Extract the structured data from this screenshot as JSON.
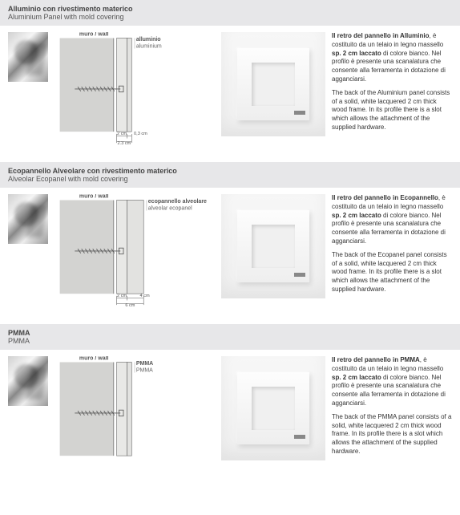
{
  "sections": [
    {
      "title_it": "Alluminio con rivestimento materico",
      "title_en": "Aluminium Panel with mold covering",
      "wall_label": "muro / wall",
      "mat_it": "alluminio",
      "mat_en": "aluminium",
      "dim1": "2 cm",
      "dim2": "0,3 cm",
      "dim_total": "2,3 cm",
      "desc_it": "Il retro del pannello in Alluminio, è costituito da un telaio in legno massello sp. 2 cm laccato di colore bianco.  Nel profilo è presente una scanalatura che consente alla ferramenta in dotazione di agganciarsi.",
      "desc_en": "The back of the Aluminium panel consists of a solid, white lacquered 2 cm thick wood frame.  In its profile there is a slot which allows the attachment of the supplied hardware.",
      "gap_r": 6
    },
    {
      "title_it": "Ecopannello Alveolare con rivestimento materico",
      "title_en": "Alveolar Ecopanel with mold covering",
      "wall_label": "muro / wall",
      "mat_it": "ecopannello alveolare",
      "mat_en": "alveolar ecopanel",
      "dim1": "2 cm",
      "dim2": "4 cm",
      "dim_total": "6 cm",
      "desc_it": "Il retro del pannello in Ecopannello, è costituito da un telaio in legno massello sp. 2 cm laccato di colore bianco.  Nel profilo è presente una scanalatura che consente alla ferramenta in dotazione di agganciarsi.",
      "desc_en": "The back of the Ecopanel panel consists of a solid, white lacquered 2 cm thick wood frame.  In its profile there is a slot which allows the attachment of the supplied hardware.",
      "gap_r": 22
    },
    {
      "title_it": "PMMA",
      "title_en": "PMMA",
      "wall_label": "muro / wall",
      "mat_it": "PMMA",
      "mat_en": "PMMA",
      "dim1": "",
      "dim2": "",
      "dim_total": "",
      "desc_it": "Il retro del pannello in PMMA, è costituito da un telaio in legno massello sp. 2 cm laccato di colore bianco.  Nel profilo è presente una scanalatura che consente alla ferramenta in dotazione di agganciarsi.",
      "desc_en": "The back of the PMMA panel consists of a solid, white lacquered  2 cm thick wood frame.  In its profile there is a slot which allows the attachment of the supplied hardware.",
      "gap_r": 6
    }
  ],
  "colors": {
    "header_bg": "#e7e7e9",
    "wall_fill": "#dcdcda",
    "wall_pattern": "#b9b9b6",
    "frame_fill": "#e8e8e6",
    "panel_fill": "#e2e2e0",
    "line": "#5a5a5a"
  }
}
